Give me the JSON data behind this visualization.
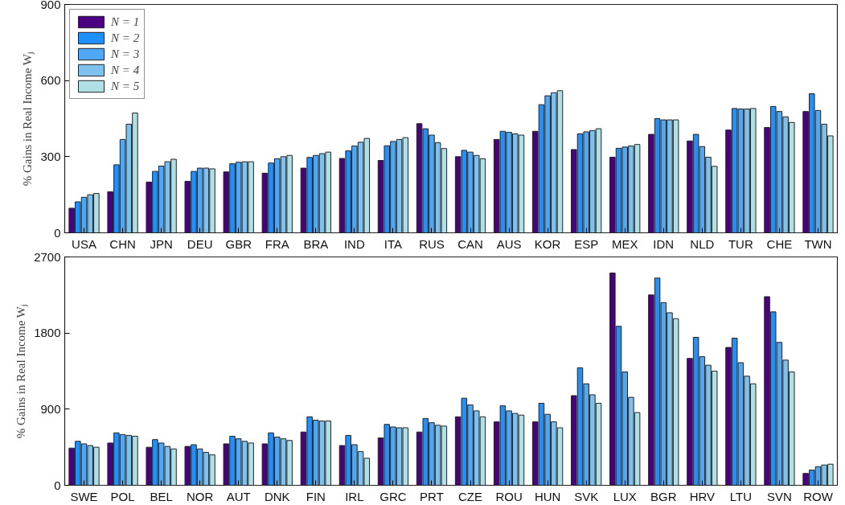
{
  "chart_data": [
    {
      "type": "bar",
      "ylabel": "% Gains in Real Income Wⱼ",
      "categories": [
        "USA",
        "CHN",
        "JPN",
        "DEU",
        "GBR",
        "FRA",
        "BRA",
        "IND",
        "ITA",
        "RUS",
        "CAN",
        "AUS",
        "KOR",
        "ESP",
        "MEX",
        "IDN",
        "NLD",
        "TUR",
        "CHE",
        "TWN"
      ],
      "series": [
        {
          "name": "N = 1",
          "color": "#4b0082",
          "values": [
            97,
            162,
            200,
            203,
            240,
            235,
            255,
            293,
            285,
            430,
            300,
            368,
            400,
            328,
            298,
            388,
            362,
            405,
            415,
            478
          ]
        },
        {
          "name": "N = 2",
          "color": "#1e90ff",
          "values": [
            122,
            268,
            242,
            242,
            272,
            275,
            297,
            323,
            343,
            410,
            325,
            400,
            505,
            390,
            333,
            450,
            388,
            490,
            498,
            548
          ]
        },
        {
          "name": "N = 3",
          "color": "#4fa8f5",
          "values": [
            140,
            368,
            263,
            255,
            278,
            292,
            305,
            342,
            360,
            385,
            318,
            396,
            540,
            398,
            338,
            445,
            340,
            488,
            478,
            482
          ]
        },
        {
          "name": "N = 4",
          "color": "#7ec0ee",
          "values": [
            150,
            428,
            280,
            255,
            280,
            300,
            312,
            357,
            368,
            355,
            305,
            390,
            552,
            403,
            342,
            445,
            298,
            488,
            457,
            428
          ]
        },
        {
          "name": "N = 5",
          "color": "#b0e0e6",
          "values": [
            155,
            472,
            290,
            252,
            280,
            305,
            318,
            372,
            375,
            332,
            292,
            385,
            560,
            410,
            348,
            445,
            262,
            490,
            435,
            382
          ]
        }
      ],
      "ylim": [
        0,
        900
      ],
      "yticks": [
        0,
        300,
        600,
        900
      ],
      "legend": "top left",
      "grid": false
    },
    {
      "type": "bar",
      "ylabel": "% Gains in Real Income Wⱼ",
      "categories": [
        "SWE",
        "POL",
        "BEL",
        "NOR",
        "AUT",
        "DNK",
        "FIN",
        "IRL",
        "GRC",
        "PRT",
        "CZE",
        "ROU",
        "HUN",
        "SVK",
        "LUX",
        "BGR",
        "HRV",
        "LTU",
        "SVN",
        "ROW"
      ],
      "series": [
        {
          "color": "#4b0082",
          "values": [
            440,
            500,
            450,
            460,
            490,
            490,
            630,
            470,
            560,
            630,
            810,
            750,
            750,
            1060,
            2510,
            2250,
            1500,
            1630,
            2230,
            140
          ]
        },
        {
          "color": "#1e90ff",
          "values": [
            520,
            620,
            540,
            480,
            580,
            620,
            810,
            590,
            720,
            790,
            1030,
            940,
            970,
            1390,
            1880,
            2450,
            1750,
            1740,
            2050,
            180
          ]
        },
        {
          "color": "#4fa8f5",
          "values": [
            490,
            600,
            500,
            430,
            550,
            570,
            770,
            480,
            690,
            740,
            950,
            880,
            840,
            1200,
            1340,
            2160,
            1520,
            1450,
            1690,
            220
          ]
        },
        {
          "color": "#7ec0ee",
          "values": [
            470,
            590,
            460,
            390,
            520,
            550,
            760,
            400,
            680,
            710,
            880,
            850,
            750,
            1070,
            1040,
            2040,
            1420,
            1290,
            1480,
            240
          ]
        },
        {
          "color": "#b0e0e6",
          "values": [
            450,
            580,
            430,
            360,
            500,
            530,
            760,
            320,
            680,
            700,
            810,
            830,
            680,
            970,
            860,
            1970,
            1350,
            1200,
            1340,
            250
          ]
        }
      ],
      "ylim": [
        0,
        2700
      ],
      "yticks": [
        0,
        900,
        1800,
        2700
      ],
      "grid": false
    }
  ]
}
